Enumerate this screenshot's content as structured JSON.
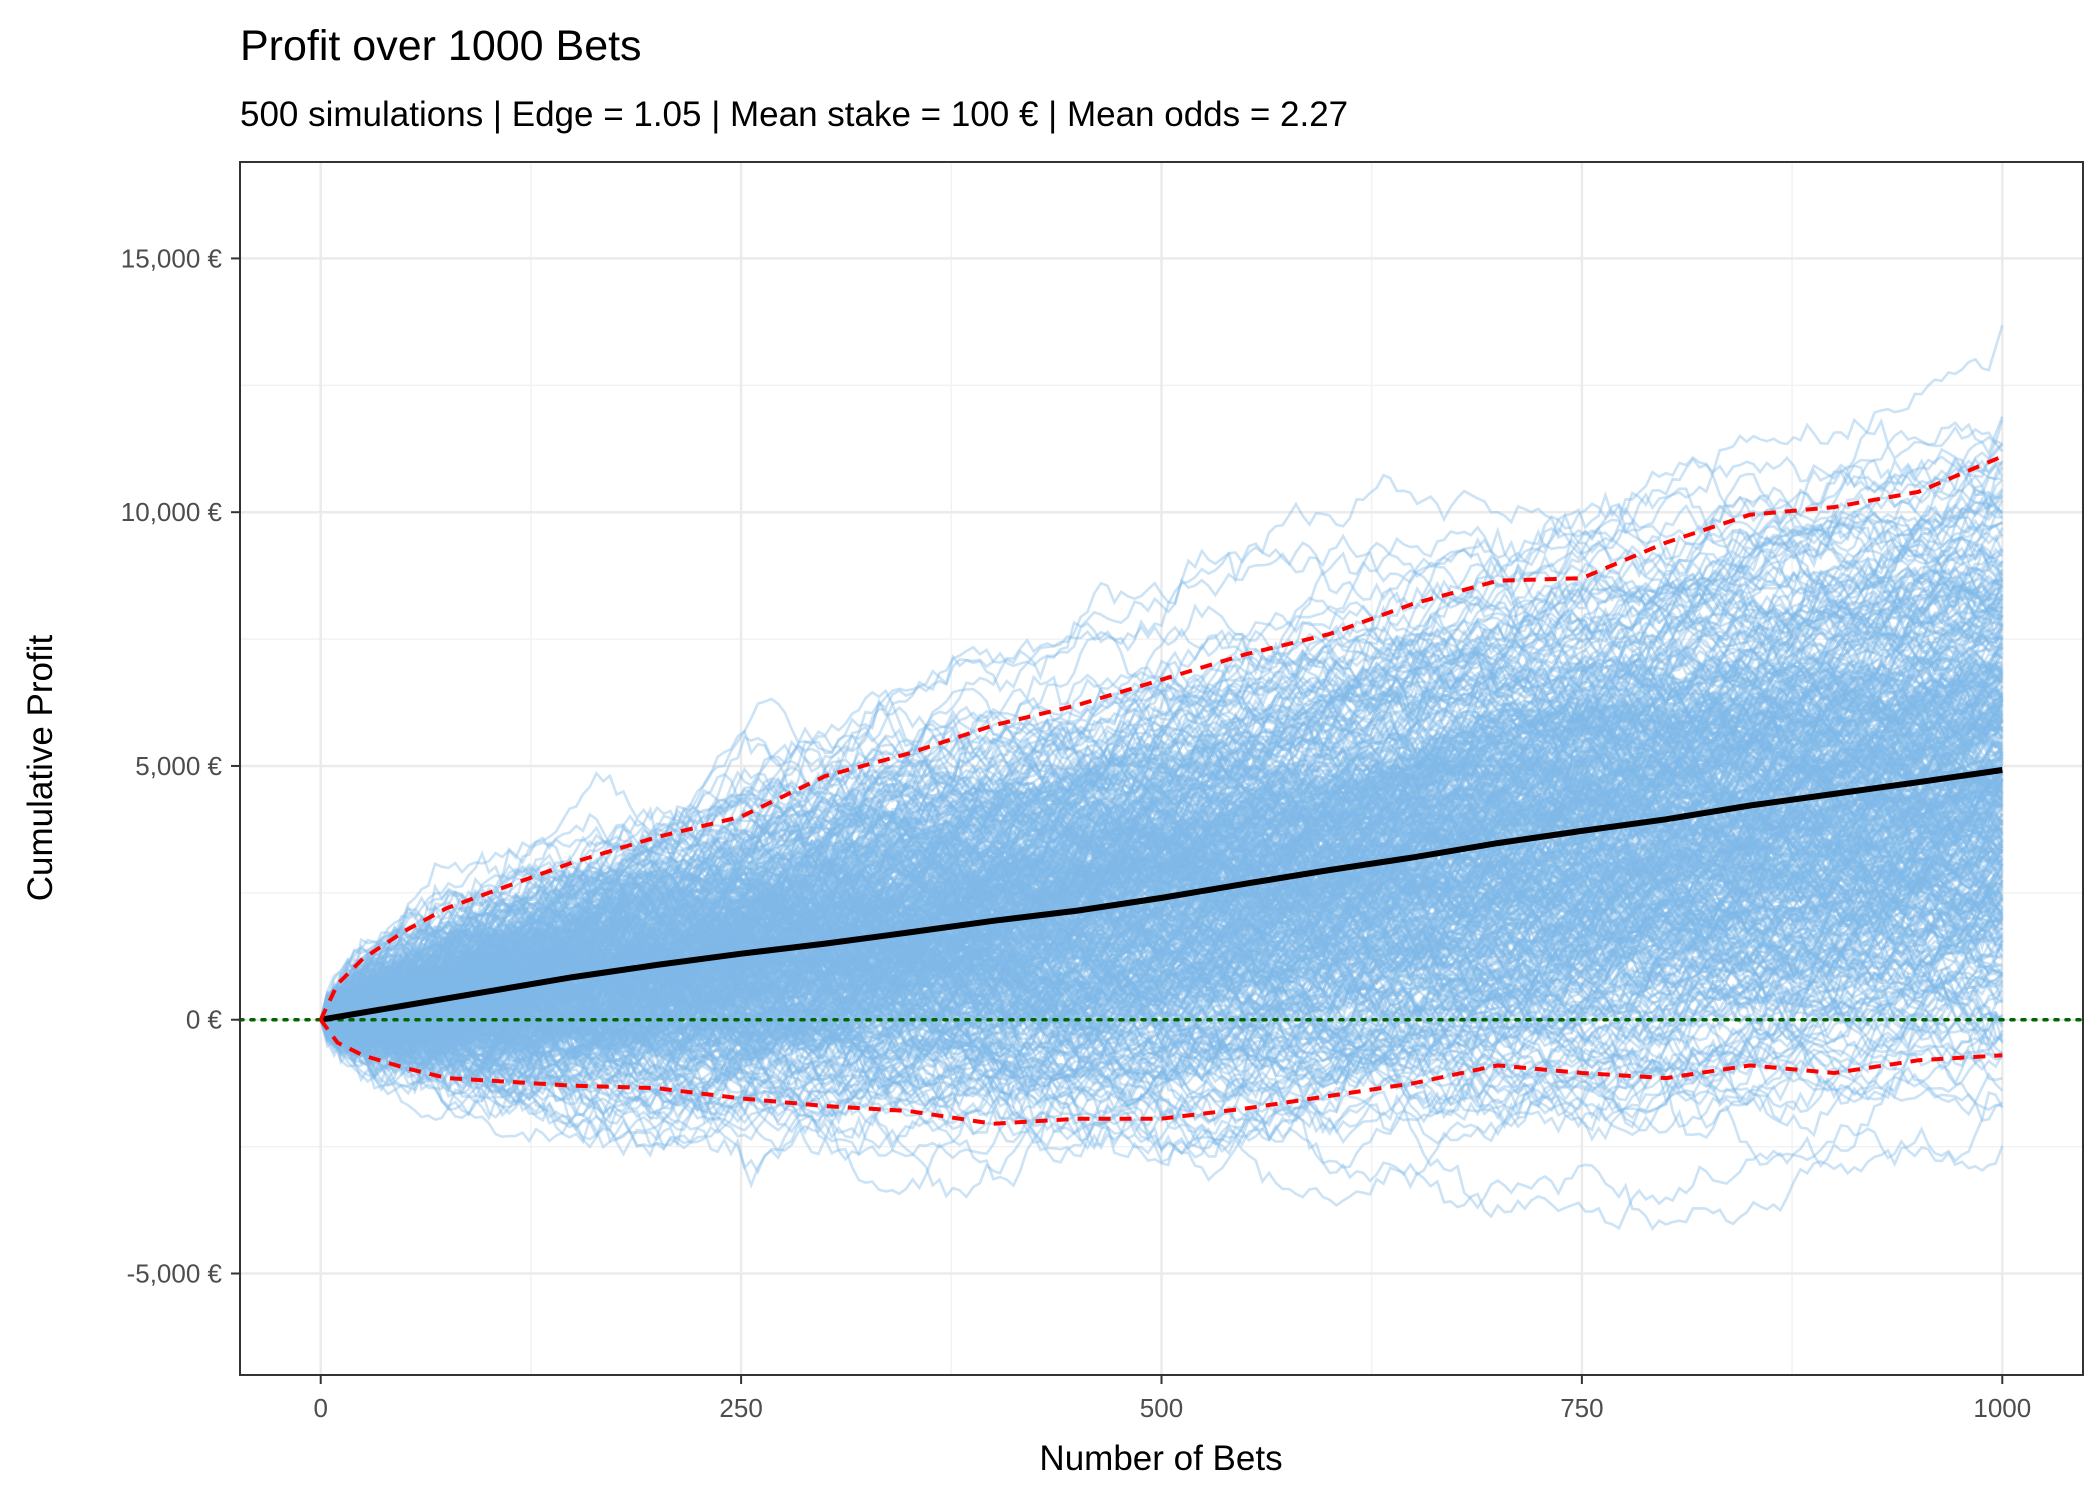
{
  "chart_data": {
    "type": "line",
    "title": "Profit over 1000 Bets",
    "subtitle": "500 simulations | Edge = 1.05 | Mean stake = 100 € | Mean odds = 2.27",
    "xlabel": "Number of Bets",
    "ylabel": "Cumulative Profit",
    "xlim": [
      -48,
      1048
    ],
    "ylim": [
      -7000,
      16900
    ],
    "x_ticks": [
      0,
      250,
      500,
      750,
      1000
    ],
    "x_tick_labels": [
      "0",
      "250",
      "500",
      "750",
      "1000"
    ],
    "y_ticks": [
      -5000,
      0,
      5000,
      10000,
      15000
    ],
    "y_tick_labels": [
      "-5,000 €",
      "0 €",
      "5,000 €",
      "10,000 €",
      "15,000 €"
    ],
    "grid": true,
    "legend": "none",
    "simulations": {
      "count": 500,
      "bets": 1000,
      "mean_step": 4.9,
      "step_sd": 90,
      "color": "#7fb9e8",
      "opacity": 0.4
    },
    "series": [
      {
        "role": "mean",
        "style": "solid",
        "color": "#000000",
        "x": [
          0,
          50,
          100,
          150,
          200,
          250,
          300,
          350,
          400,
          450,
          500,
          550,
          600,
          650,
          700,
          750,
          800,
          850,
          900,
          950,
          1000
        ],
        "y": [
          0,
          280,
          560,
          840,
          1080,
          1300,
          1500,
          1720,
          1950,
          2150,
          2400,
          2680,
          2950,
          3200,
          3480,
          3720,
          3950,
          4220,
          4450,
          4680,
          4920
        ]
      },
      {
        "role": "upper",
        "style": "dashed",
        "color": "#ff0000",
        "x": [
          0,
          10,
          25,
          50,
          75,
          100,
          125,
          150,
          200,
          250,
          300,
          350,
          400,
          450,
          500,
          550,
          600,
          650,
          700,
          750,
          800,
          850,
          900,
          950,
          1000
        ],
        "y": [
          0,
          700,
          1200,
          1750,
          2200,
          2500,
          2800,
          3100,
          3600,
          4000,
          4800,
          5250,
          5800,
          6200,
          6700,
          7200,
          7600,
          8200,
          8650,
          8700,
          9400,
          9950,
          10100,
          10400,
          11100
        ]
      },
      {
        "role": "lower",
        "style": "dashed",
        "color": "#ff0000",
        "x": [
          0,
          10,
          25,
          50,
          75,
          100,
          150,
          200,
          250,
          300,
          350,
          400,
          450,
          500,
          550,
          600,
          650,
          700,
          750,
          800,
          850,
          900,
          950,
          1000
        ],
        "y": [
          0,
          -450,
          -700,
          -950,
          -1150,
          -1200,
          -1300,
          -1350,
          -1550,
          -1700,
          -1800,
          -2050,
          -1950,
          -1950,
          -1750,
          -1500,
          -1250,
          -900,
          -1050,
          -1150,
          -900,
          -1050,
          -800,
          -700
        ]
      },
      {
        "role": "zero",
        "style": "dotted",
        "color": "#006400",
        "x": [
          -48,
          1048
        ],
        "y": [
          0,
          0
        ]
      }
    ]
  }
}
